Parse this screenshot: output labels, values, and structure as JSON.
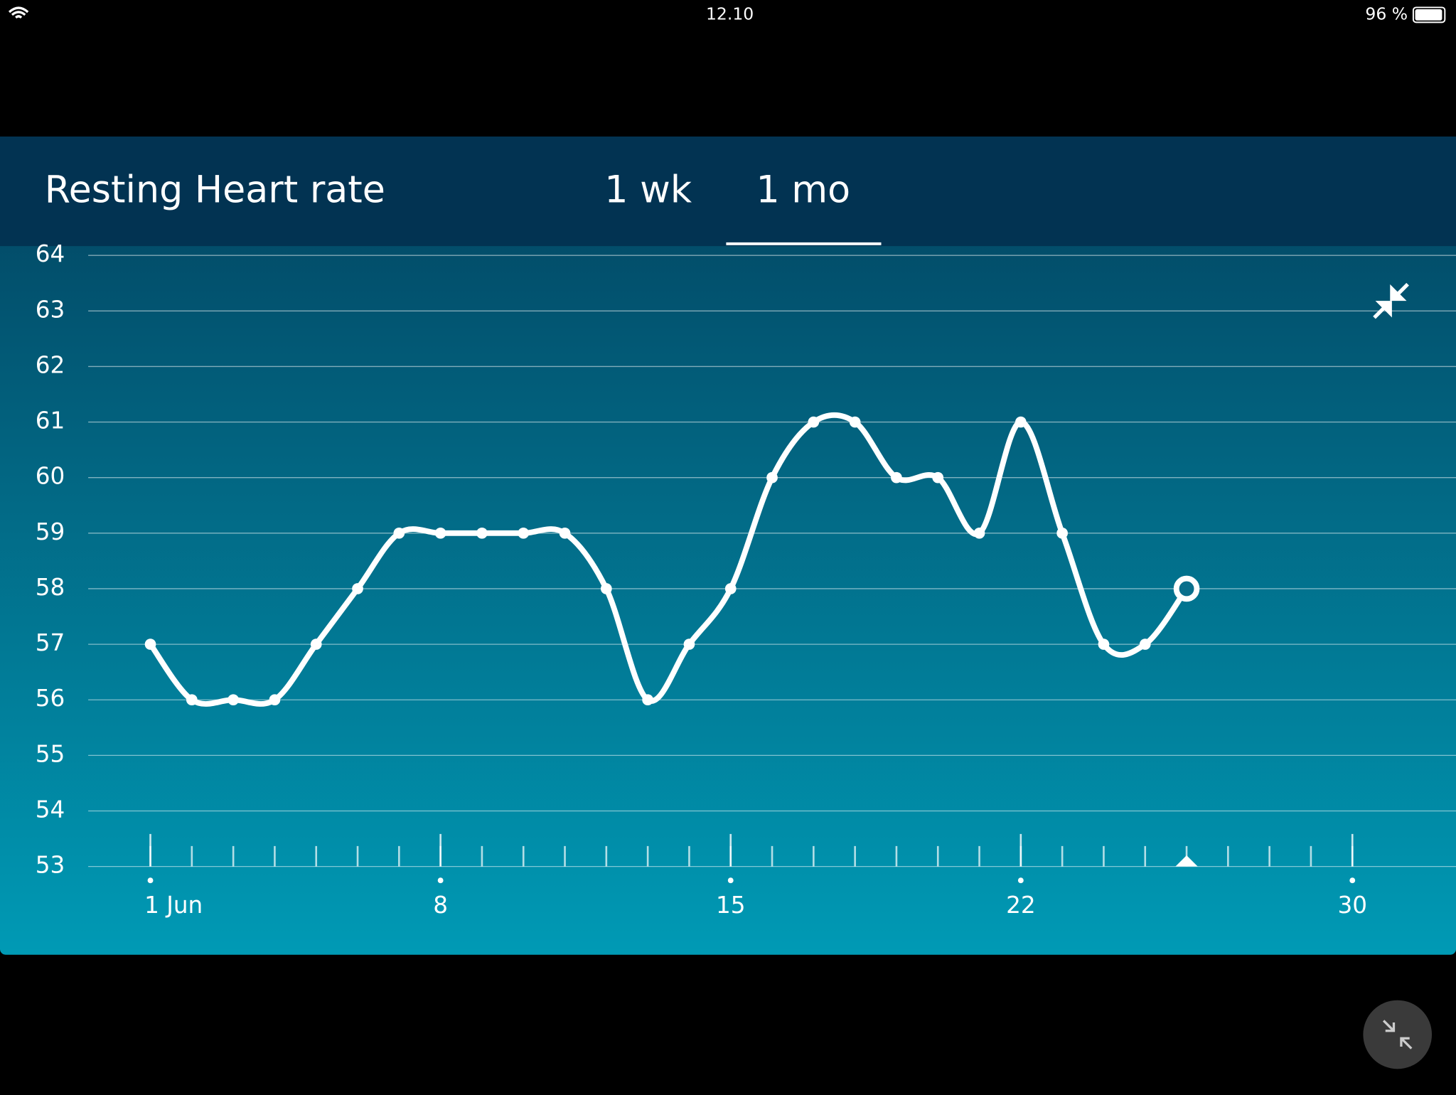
{
  "status_bar": {
    "time": "12.10",
    "battery": "96 %"
  },
  "header": {
    "title": "Resting Heart rate",
    "tabs": [
      "1 wk",
      "1 mo"
    ]
  },
  "chart_data": {
    "type": "line",
    "x": [
      1,
      2,
      3,
      4,
      5,
      6,
      7,
      8,
      9,
      10,
      11,
      12,
      13,
      14,
      15,
      16,
      17,
      18,
      19,
      20,
      21,
      22,
      23,
      24,
      25,
      26
    ],
    "values": [
      57,
      56,
      56,
      56,
      57,
      58,
      59,
      59,
      59,
      59,
      59,
      58,
      56,
      57,
      58,
      60,
      61,
      61,
      60,
      60,
      59,
      61,
      59,
      57,
      57,
      58
    ],
    "color": "#ffffff",
    "xlim": [
      -0.5,
      32.5
    ],
    "xticks": [
      {
        "value": 1,
        "label": "1 Jun"
      },
      8,
      15,
      22,
      30
    ],
    "ylim": [
      53,
      64
    ],
    "yticks": [
      53,
      54,
      55,
      56,
      57,
      58,
      59,
      60,
      61,
      62,
      63,
      64
    ],
    "grid": true
  }
}
